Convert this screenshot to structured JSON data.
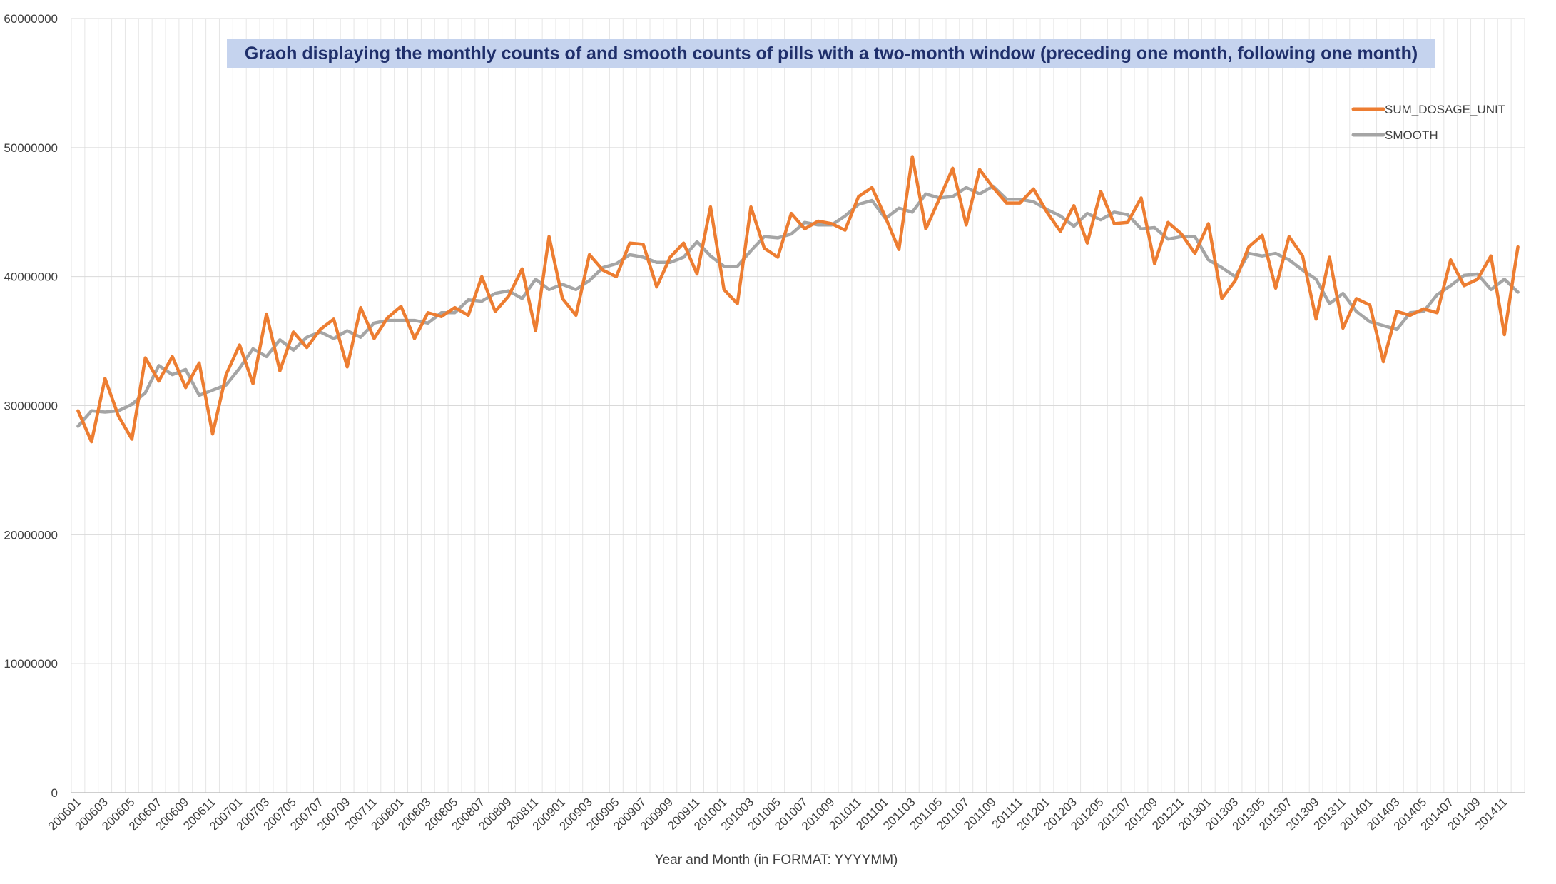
{
  "chart_data": {
    "type": "line",
    "title": "Graoh displaying the monthly counts of and smooth counts of pills with a two-month window (preceding one month, following one month)",
    "xlabel": "Year and Month (in FORMAT: YYYYMM)",
    "ylabel": "",
    "ylim": [
      0,
      60000000
    ],
    "yticks": [
      0,
      10000000,
      20000000,
      30000000,
      40000000,
      50000000,
      60000000
    ],
    "ytick_labels": [
      "0",
      "10000000",
      "20000000",
      "30000000",
      "40000000",
      "50000000",
      "60000000"
    ],
    "grid": true,
    "legend_position": "top-right",
    "x": [
      "200601",
      "200602",
      "200603",
      "200604",
      "200605",
      "200606",
      "200607",
      "200608",
      "200609",
      "200610",
      "200611",
      "200612",
      "200701",
      "200702",
      "200703",
      "200704",
      "200705",
      "200706",
      "200707",
      "200708",
      "200709",
      "200710",
      "200711",
      "200712",
      "200801",
      "200802",
      "200803",
      "200804",
      "200805",
      "200806",
      "200807",
      "200808",
      "200809",
      "200810",
      "200811",
      "200812",
      "200901",
      "200902",
      "200903",
      "200904",
      "200905",
      "200906",
      "200907",
      "200908",
      "200909",
      "200910",
      "200911",
      "200912",
      "201001",
      "201002",
      "201003",
      "201004",
      "201005",
      "201006",
      "201007",
      "201008",
      "201009",
      "201010",
      "201011",
      "201012",
      "201101",
      "201102",
      "201103",
      "201104",
      "201105",
      "201106",
      "201107",
      "201108",
      "201109",
      "201110",
      "201111",
      "201112",
      "201201",
      "201202",
      "201203",
      "201204",
      "201205",
      "201206",
      "201207",
      "201208",
      "201209",
      "201210",
      "201211",
      "201212",
      "201301",
      "201302",
      "201303",
      "201304",
      "201305",
      "201306",
      "201307",
      "201308",
      "201309",
      "201310",
      "201311",
      "201312",
      "201401",
      "201402",
      "201403",
      "201404",
      "201405",
      "201406",
      "201407",
      "201408",
      "201409",
      "201410",
      "201411",
      "201412"
    ],
    "xtick_labels": [
      "200601",
      "200603",
      "200605",
      "200607",
      "200609",
      "200611",
      "200701",
      "200703",
      "200705",
      "200707",
      "200709",
      "200711",
      "200801",
      "200803",
      "200805",
      "200807",
      "200809",
      "200811",
      "200901",
      "200903",
      "200905",
      "200907",
      "200909",
      "200911",
      "201001",
      "201003",
      "201005",
      "201007",
      "201009",
      "201011",
      "201101",
      "201103",
      "201105",
      "201107",
      "201109",
      "201111",
      "201201",
      "201203",
      "201205",
      "201207",
      "201209",
      "201211",
      "201301",
      "201303",
      "201305",
      "201307",
      "201309",
      "201311",
      "201401",
      "201403",
      "201405",
      "201407",
      "201409",
      "201411"
    ],
    "series": [
      {
        "name": "SUM_DOSAGE_UNIT",
        "color": "#ed7d31",
        "values": [
          29600000,
          27200000,
          32100000,
          29200000,
          27400000,
          33700000,
          31900000,
          33800000,
          31400000,
          33300000,
          27800000,
          32400000,
          34700000,
          31700000,
          37100000,
          32700000,
          35700000,
          34500000,
          35900000,
          36700000,
          33000000,
          37600000,
          35200000,
          36800000,
          37700000,
          35200000,
          37200000,
          36900000,
          37600000,
          37000000,
          40000000,
          37300000,
          38500000,
          40600000,
          35800000,
          43100000,
          38300000,
          37000000,
          41700000,
          40500000,
          40000000,
          42600000,
          42500000,
          39200000,
          41500000,
          42600000,
          40200000,
          45400000,
          39000000,
          37900000,
          45400000,
          42200000,
          41500000,
          44900000,
          43700000,
          44300000,
          44100000,
          43600000,
          46200000,
          46900000,
          44600000,
          42100000,
          49300000,
          43700000,
          46000000,
          48400000,
          44000000,
          48300000,
          46900000,
          45700000,
          45700000,
          46800000,
          45000000,
          43500000,
          45500000,
          42600000,
          46600000,
          44100000,
          44200000,
          46100000,
          41000000,
          44200000,
          43300000,
          41800000,
          44100000,
          38300000,
          39700000,
          42300000,
          43200000,
          39100000,
          43100000,
          41600000,
          36700000,
          41500000,
          36000000,
          38300000,
          37800000,
          33400000,
          37300000,
          37000000,
          37500000,
          37200000,
          41300000,
          39300000,
          39800000,
          41600000,
          35500000,
          42300000
        ]
      },
      {
        "name": "SMOOTH",
        "color": "#a5a5a5",
        "values": [
          28400000,
          29600000,
          29500000,
          29600000,
          30100000,
          31000000,
          33100000,
          32400000,
          32800000,
          30800000,
          31200000,
          31600000,
          32900000,
          34400000,
          33800000,
          35100000,
          34300000,
          35300000,
          35700000,
          35200000,
          35800000,
          35300000,
          36400000,
          36600000,
          36600000,
          36600000,
          36400000,
          37200000,
          37200000,
          38200000,
          38100000,
          38700000,
          38900000,
          38300000,
          39800000,
          39000000,
          39400000,
          39000000,
          39700000,
          40700000,
          41000000,
          41700000,
          41500000,
          41100000,
          41100000,
          41500000,
          42700000,
          41600000,
          40800000,
          40800000,
          42000000,
          43100000,
          43000000,
          43300000,
          44200000,
          44000000,
          44000000,
          44700000,
          45600000,
          45900000,
          44500000,
          45300000,
          45000000,
          46400000,
          46100000,
          46200000,
          46900000,
          46400000,
          47000000,
          46000000,
          46000000,
          45800000,
          45200000,
          44700000,
          43900000,
          44900000,
          44400000,
          45000000,
          44800000,
          43700000,
          43800000,
          42900000,
          43100000,
          43100000,
          41300000,
          40700000,
          40000000,
          41800000,
          41600000,
          41800000,
          41300000,
          40500000,
          39800000,
          37900000,
          38700000,
          37300000,
          36500000,
          36200000,
          35900000,
          37200000,
          37300000,
          38600000,
          39300000,
          40100000,
          40200000,
          39000000,
          39800000,
          38800000
        ]
      }
    ]
  }
}
